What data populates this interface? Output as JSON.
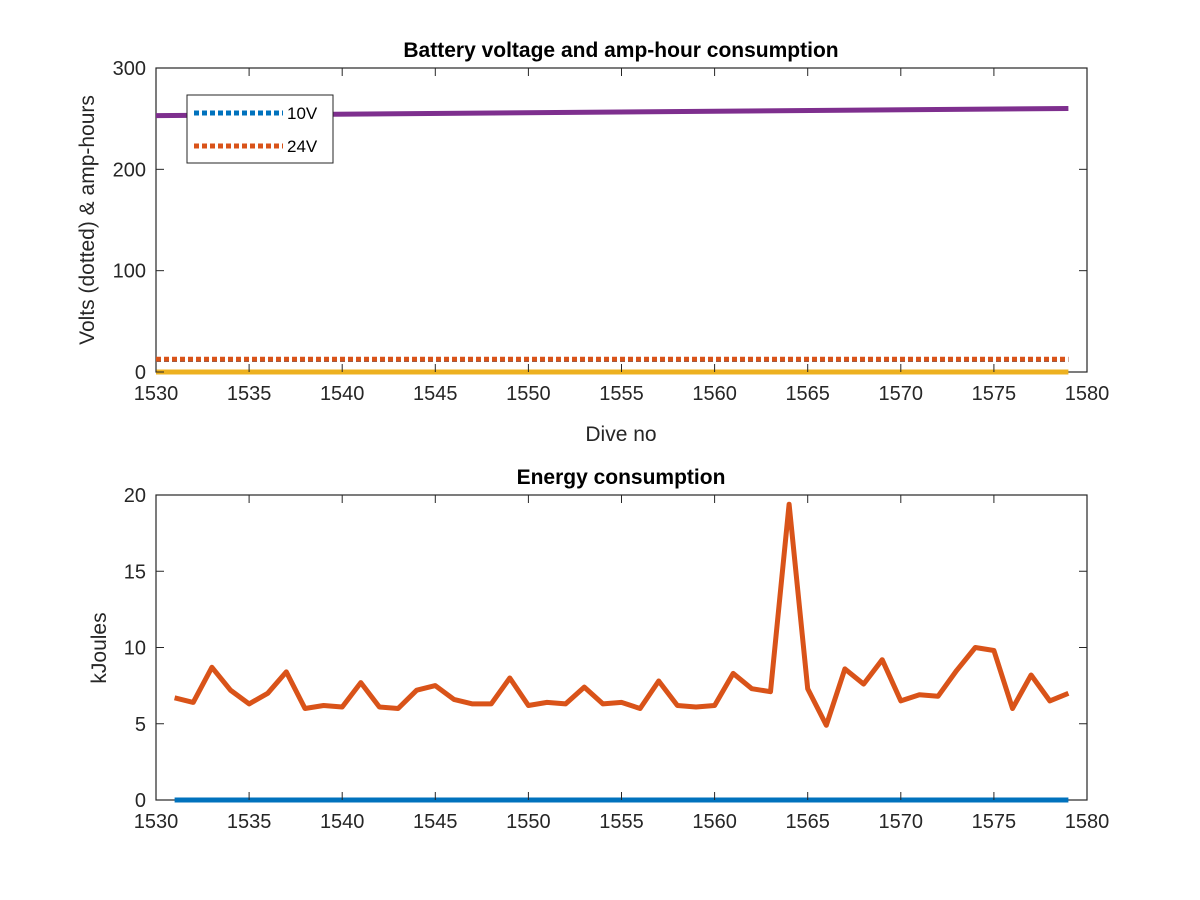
{
  "chart_data": [
    {
      "type": "line",
      "title": "Battery voltage and amp-hour consumption",
      "xlabel": "Dive no",
      "ylabel": "Volts (dotted) & amp-hours",
      "xlim": [
        1530,
        1580
      ],
      "ylim": [
        0,
        300
      ],
      "xticks": [
        "1530",
        "1535",
        "1540",
        "1545",
        "1550",
        "1555",
        "1560",
        "1565",
        "1570",
        "1575",
        "1580"
      ],
      "yticks": [
        "0",
        "100",
        "200",
        "300"
      ],
      "grid": false,
      "legend_placement": "top-left",
      "series": [
        {
          "name": "10V",
          "style": "dotted",
          "color": "#0072BD",
          "x": [
            1530,
            1579
          ],
          "values": [
            12.3,
            12.3
          ]
        },
        {
          "name": "24V",
          "style": "dotted",
          "color": "#D95319",
          "x": [
            1530,
            1579
          ],
          "values": [
            12.6,
            12.6
          ]
        },
        {
          "style": "solid",
          "color": "#EDB120",
          "x": [
            1530,
            1579
          ],
          "values": [
            0,
            0
          ]
        },
        {
          "style": "solid",
          "color": "#7E2F8E",
          "x": [
            1530,
            1579
          ],
          "values": [
            253,
            260
          ]
        }
      ]
    },
    {
      "type": "line",
      "title": "Energy consumption",
      "xlabel": "",
      "ylabel": "kJoules",
      "xlim": [
        1530,
        1580
      ],
      "ylim": [
        0,
        20
      ],
      "xticks": [
        "1530",
        "1535",
        "1540",
        "1545",
        "1550",
        "1555",
        "1560",
        "1565",
        "1570",
        "1575",
        "1580"
      ],
      "yticks": [
        "0",
        "5",
        "10",
        "15",
        "20"
      ],
      "grid": false,
      "series": [
        {
          "style": "solid",
          "color": "#0072BD",
          "x": [
            1531,
            1579
          ],
          "values": [
            0,
            0
          ]
        },
        {
          "style": "solid",
          "color": "#D95319",
          "x": [
            1531,
            1532,
            1533,
            1534,
            1535,
            1536,
            1537,
            1538,
            1539,
            1540,
            1541,
            1542,
            1543,
            1544,
            1545,
            1546,
            1547,
            1548,
            1549,
            1550,
            1551,
            1552,
            1553,
            1554,
            1555,
            1556,
            1557,
            1558,
            1559,
            1560,
            1561,
            1562,
            1563,
            1564,
            1565,
            1566,
            1567,
            1568,
            1569,
            1570,
            1571,
            1572,
            1573,
            1574,
            1575,
            1576,
            1577,
            1578,
            1579
          ],
          "values": [
            6.7,
            6.4,
            8.7,
            7.2,
            6.3,
            7.0,
            8.4,
            6.0,
            6.2,
            6.1,
            7.7,
            6.1,
            6.0,
            7.2,
            7.5,
            6.6,
            6.3,
            6.3,
            8.0,
            6.2,
            6.4,
            6.3,
            7.4,
            6.3,
            6.4,
            6.0,
            7.8,
            6.2,
            6.1,
            6.2,
            8.3,
            7.3,
            7.1,
            19.4,
            7.3,
            4.9,
            8.6,
            7.6,
            9.2,
            6.5,
            6.9,
            6.8,
            8.5,
            10.0,
            9.8,
            6.0,
            8.2,
            6.5,
            7.0
          ]
        }
      ]
    }
  ]
}
